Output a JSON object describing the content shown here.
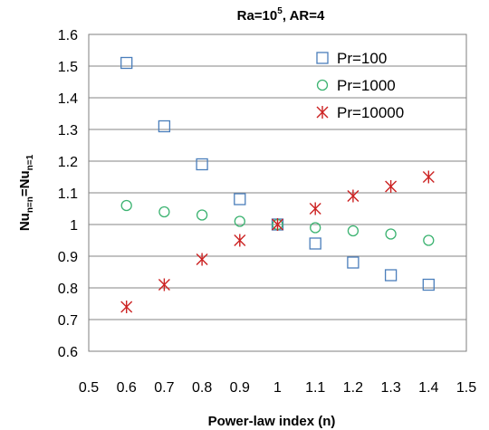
{
  "chart_data": {
    "type": "scatter",
    "title_base": "Ra=10",
    "title_exp": "5",
    "title_rest": ", AR=4",
    "xlabel": "Power-law index (n)",
    "ylabel_base": "Nu",
    "ylabel_sub1": "n=n",
    "ylabel_eq": "=Nu",
    "ylabel_sub2": "n=1",
    "xlim": [
      0.5,
      1.5
    ],
    "ylim": [
      0.6,
      1.6
    ],
    "x_ticks": [
      "0.5",
      "0.6",
      "0.7",
      "0.8",
      "0.9",
      "1",
      "1.1",
      "1.2",
      "1.3",
      "1.4",
      "1.5"
    ],
    "x_tick_values": [
      0.5,
      0.6,
      0.7,
      0.8,
      0.9,
      1.0,
      1.1,
      1.2,
      1.3,
      1.4,
      1.5
    ],
    "y_ticks": [
      "0.6",
      "0.7",
      "0.8",
      "0.9",
      "1",
      "1.1",
      "1.2",
      "1.3",
      "1.4",
      "1.5",
      "1.6"
    ],
    "y_tick_values": [
      0.6,
      0.7,
      0.8,
      0.9,
      1.0,
      1.1,
      1.2,
      1.3,
      1.4,
      1.5,
      1.6
    ],
    "grid": "horizontal",
    "legend_position": "top-right",
    "series": [
      {
        "name": "Pr=100",
        "marker": "square",
        "color": "#4a7ebb",
        "x": [
          0.6,
          0.7,
          0.8,
          0.9,
          1.0,
          1.1,
          1.2,
          1.3,
          1.4
        ],
        "y": [
          1.51,
          1.31,
          1.19,
          1.08,
          1.0,
          0.94,
          0.88,
          0.84,
          0.81
        ]
      },
      {
        "name": "Pr=1000",
        "marker": "circle",
        "color": "#3cb371",
        "x": [
          0.6,
          0.7,
          0.8,
          0.9,
          1.0,
          1.1,
          1.2,
          1.3,
          1.4
        ],
        "y": [
          1.06,
          1.04,
          1.03,
          1.01,
          1.0,
          0.99,
          0.98,
          0.97,
          0.95
        ]
      },
      {
        "name": "Pr=10000",
        "marker": "asterisk",
        "color": "#cc2222",
        "x": [
          0.6,
          0.7,
          0.8,
          0.9,
          1.0,
          1.1,
          1.2,
          1.3,
          1.4
        ],
        "y": [
          0.74,
          0.81,
          0.89,
          0.95,
          1.0,
          1.05,
          1.09,
          1.12,
          1.15
        ]
      }
    ]
  }
}
